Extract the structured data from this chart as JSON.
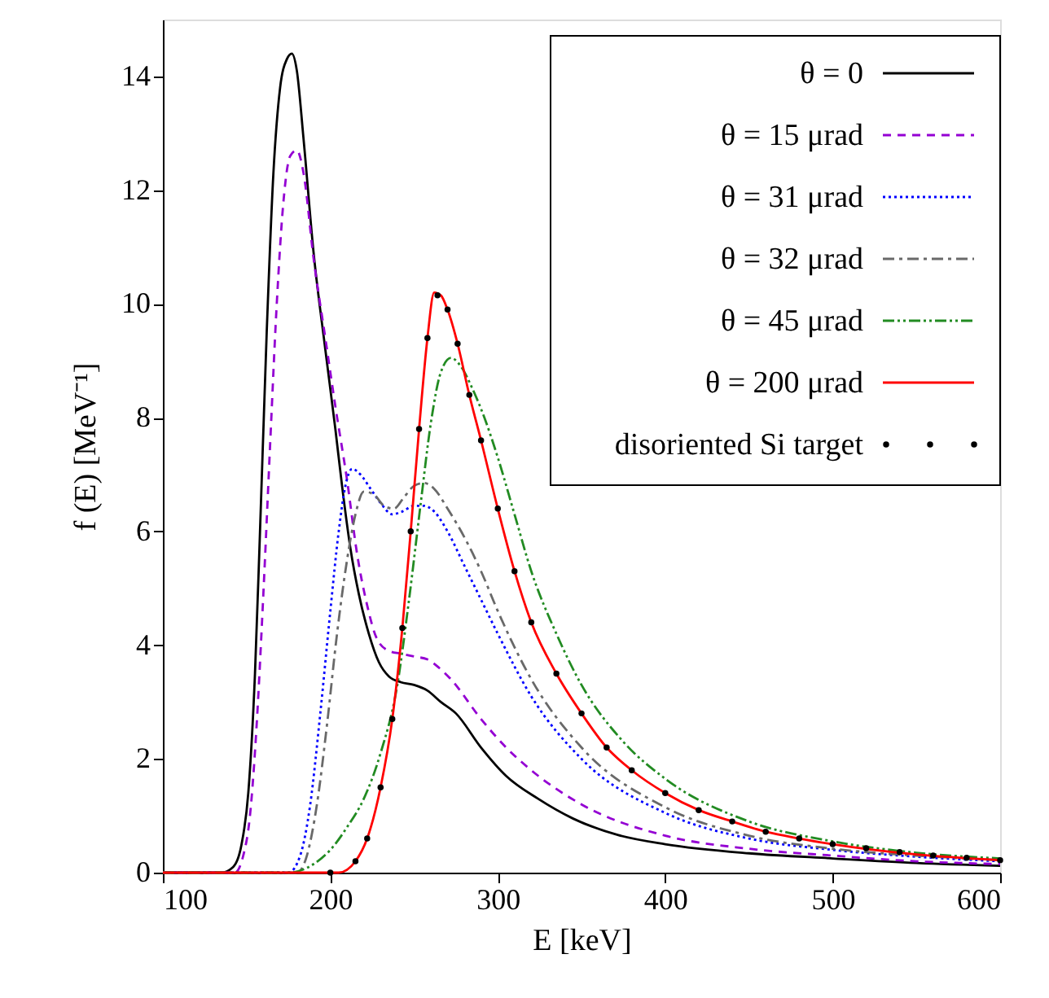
{
  "chart_data": {
    "type": "line",
    "xlabel": "E [keV]",
    "ylabel": "f (E)  [MeV⁻¹]",
    "xlim": [
      100,
      600
    ],
    "xticks": [
      100,
      200,
      300,
      400,
      500,
      600
    ],
    "ylim": [
      0,
      15
    ],
    "yticks": [
      0,
      2,
      4,
      6,
      8,
      10,
      12,
      14
    ],
    "grid": false,
    "legend": "top right",
    "series": [
      {
        "name": "θ = 0",
        "color": "#000000",
        "line_style": "solid",
        "x": [
          100,
          135,
          142,
          147,
          151,
          155,
          158,
          162,
          166,
          170,
          174,
          177,
          180,
          184,
          190,
          197,
          203,
          207,
          212,
          217,
          223,
          229,
          235,
          242,
          250,
          258,
          266,
          275,
          290,
          305,
          324,
          345,
          372,
          400,
          450,
          500,
          550,
          600
        ],
        "values": [
          0,
          0,
          0.1,
          0.5,
          1.4,
          3.5,
          6.0,
          9.5,
          12.3,
          13.8,
          14.3,
          14.4,
          14.1,
          12.9,
          10.9,
          9.2,
          7.8,
          6.8,
          5.7,
          4.9,
          4.2,
          3.7,
          3.45,
          3.35,
          3.3,
          3.2,
          3.0,
          2.8,
          2.2,
          1.7,
          1.3,
          0.95,
          0.66,
          0.5,
          0.34,
          0.25,
          0.17,
          0.12
        ]
      },
      {
        "name": "θ = 15 μrad",
        "color": "#9400d3",
        "line_style": "dashed",
        "x": [
          100,
          143,
          148,
          152,
          156,
          160,
          164,
          168,
          172,
          176,
          180,
          184,
          190,
          197,
          203,
          210,
          216,
          222,
          228,
          235,
          242,
          250,
          258,
          265,
          272,
          290,
          305,
          320,
          350,
          400,
          450,
          500,
          550,
          600
        ],
        "values": [
          0,
          0,
          0.3,
          1.0,
          2.6,
          4.9,
          7.5,
          10.0,
          11.8,
          12.6,
          12.7,
          12.3,
          10.8,
          9.4,
          8.2,
          6.9,
          5.6,
          4.7,
          4.1,
          3.9,
          3.85,
          3.8,
          3.75,
          3.6,
          3.4,
          2.7,
          2.2,
          1.8,
          1.2,
          0.65,
          0.42,
          0.3,
          0.2,
          0.15
        ]
      },
      {
        "name": "θ = 31 μrad",
        "color": "#0000ff",
        "line_style": "dotted",
        "x": [
          100,
          175,
          182,
          188,
          194,
          200,
          205,
          209,
          213,
          218,
          224,
          230,
          237,
          243,
          250,
          256,
          262,
          270,
          280,
          290,
          300,
          320,
          350,
          400,
          450,
          500,
          550,
          600
        ],
        "values": [
          0,
          0,
          0.3,
          1.2,
          2.8,
          4.6,
          6.0,
          6.8,
          7.1,
          7.0,
          6.75,
          6.5,
          6.3,
          6.35,
          6.45,
          6.45,
          6.35,
          6.0,
          5.4,
          4.8,
          4.2,
          3.1,
          2.0,
          1.05,
          0.6,
          0.4,
          0.28,
          0.2
        ]
      },
      {
        "name": "θ = 32 μrad",
        "color": "#696969",
        "line_style": "dashdot",
        "x": [
          100,
          180,
          186,
          192,
          198,
          204,
          210,
          215,
          220,
          226,
          232,
          238,
          244,
          250,
          256,
          262,
          270,
          280,
          290,
          300,
          320,
          350,
          400,
          450,
          500,
          550,
          600
        ],
        "values": [
          0,
          0,
          0.3,
          1.2,
          2.6,
          4.2,
          5.5,
          6.3,
          6.7,
          6.65,
          6.45,
          6.4,
          6.6,
          6.8,
          6.85,
          6.75,
          6.4,
          5.9,
          5.3,
          4.6,
          3.4,
          2.2,
          1.15,
          0.65,
          0.42,
          0.3,
          0.22
        ]
      },
      {
        "name": "θ = 45 μrad",
        "color": "#228b22",
        "line_style": "dashdotdot",
        "x": [
          100,
          175,
          190,
          200,
          210,
          220,
          230,
          240,
          247,
          254,
          260,
          266,
          272,
          278,
          285,
          292,
          300,
          310,
          320,
          335,
          350,
          375,
          400,
          450,
          500,
          550,
          600
        ],
        "values": [
          0,
          0,
          0.15,
          0.4,
          0.8,
          1.3,
          2.1,
          3.3,
          4.8,
          6.5,
          7.9,
          8.8,
          9.05,
          8.9,
          8.5,
          8.0,
          7.3,
          6.3,
          5.3,
          4.2,
          3.3,
          2.3,
          1.65,
          0.9,
          0.55,
          0.35,
          0.25
        ]
      },
      {
        "name": "θ = 200 μrad",
        "color": "#ff0000",
        "line_style": "solid",
        "x": [
          100,
          205,
          215,
          222,
          230,
          237,
          243,
          248,
          253,
          258,
          262,
          266,
          270,
          276,
          283,
          290,
          300,
          310,
          320,
          335,
          350,
          365,
          380,
          400,
          420,
          440,
          460,
          480,
          500,
          550,
          600
        ],
        "values": [
          0,
          0,
          0.2,
          0.6,
          1.5,
          2.7,
          4.3,
          6.0,
          7.8,
          9.4,
          10.2,
          10.15,
          9.9,
          9.3,
          8.4,
          7.6,
          6.4,
          5.3,
          4.4,
          3.5,
          2.8,
          2.2,
          1.8,
          1.4,
          1.1,
          0.9,
          0.72,
          0.6,
          0.5,
          0.32,
          0.22
        ]
      },
      {
        "name": "disoriented Si target",
        "color": "#000000",
        "type": "scatter",
        "marker": "circle",
        "x": [
          200,
          215,
          222,
          230,
          237,
          243,
          248,
          253,
          258,
          264,
          270,
          276,
          283,
          290,
          300,
          310,
          320,
          335,
          350,
          365,
          380,
          400,
          420,
          440,
          460,
          480,
          500,
          520,
          540,
          560,
          580,
          600
        ],
        "values": [
          0,
          0.2,
          0.6,
          1.5,
          2.7,
          4.3,
          6.0,
          7.8,
          9.4,
          10.15,
          9.9,
          9.3,
          8.4,
          7.6,
          6.4,
          5.3,
          4.4,
          3.5,
          2.8,
          2.2,
          1.8,
          1.4,
          1.1,
          0.9,
          0.72,
          0.6,
          0.5,
          0.43,
          0.36,
          0.3,
          0.26,
          0.22
        ]
      }
    ]
  }
}
